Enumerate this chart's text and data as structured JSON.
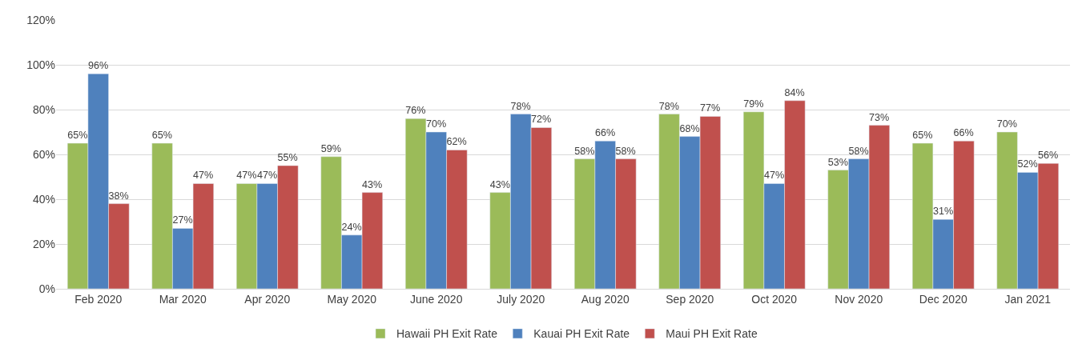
{
  "chart_data": {
    "type": "bar",
    "categories": [
      "Feb 2020",
      "Mar 2020",
      "Apr 2020",
      "May 2020",
      "June 2020",
      "July 2020",
      "Aug 2020",
      "Sep 2020",
      "Oct 2020",
      "Nov 2020",
      "Dec 2020",
      "Jan 2021"
    ],
    "series": [
      {
        "name": "Hawaii PH Exit Rate",
        "color": "#9bbb59",
        "values": [
          65,
          65,
          47,
          59,
          76,
          43,
          58,
          78,
          79,
          53,
          65,
          70
        ],
        "value_labels": [
          "65%",
          "65%",
          "47%",
          "59%",
          "76%",
          "43%",
          "58%",
          "78%",
          "79%",
          "53%",
          "65%",
          "70%"
        ]
      },
      {
        "name": "Kauai PH Exit Rate",
        "color": "#4f81bd",
        "values": [
          96,
          27,
          47,
          24,
          70,
          78,
          66,
          68,
          47,
          58,
          31,
          52
        ],
        "value_labels": [
          "96%",
          "27%",
          "47%",
          "24%",
          "70%",
          "78%",
          "66%",
          "68%",
          "47%",
          "58%",
          "31%",
          "52%"
        ]
      },
      {
        "name": "Maui PH Exit Rate",
        "color": "#c0504d",
        "values": [
          38,
          47,
          55,
          43,
          62,
          72,
          58,
          77,
          84,
          73,
          66,
          56
        ],
        "value_labels": [
          "38%",
          "47%",
          "55%",
          "43%",
          "62%",
          "72%",
          "58%",
          "77%",
          "84%",
          "73%",
          "66%",
          "56%"
        ]
      }
    ],
    "ylim": [
      0,
      120
    ],
    "yticks": [
      {
        "value": 0,
        "label": "0%"
      },
      {
        "value": 20,
        "label": "20%"
      },
      {
        "value": 40,
        "label": "40%"
      },
      {
        "value": 60,
        "label": "60%"
      },
      {
        "value": 80,
        "label": "80%"
      },
      {
        "value": 100,
        "label": "100%"
      },
      {
        "value": 120,
        "label": "120%"
      }
    ],
    "grid": "y",
    "legend": "bottom"
  }
}
